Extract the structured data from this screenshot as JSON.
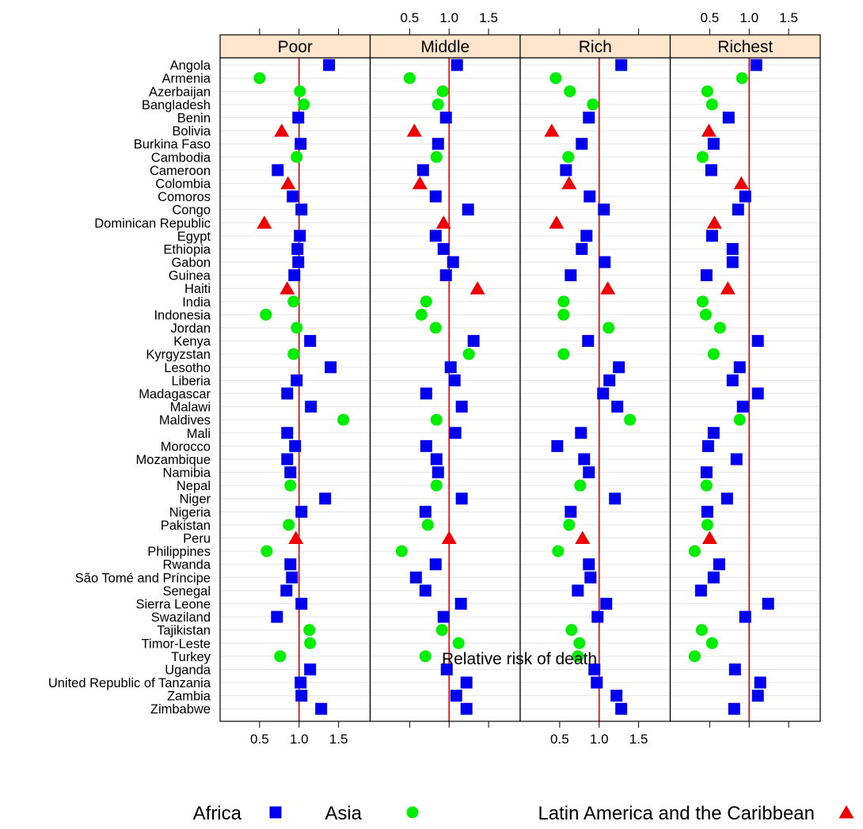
{
  "chart_data": {
    "type": "scatter",
    "title": "",
    "xlabel": "Relative risk of death",
    "ylabel": "",
    "xlim": [
      0.0,
      1.9
    ],
    "x_ticks": [
      0.5,
      1.0,
      1.5
    ],
    "x_tick_labels": [
      "0.5",
      "1.0",
      "1.5"
    ],
    "reference_line": 1.0,
    "grid": "horizontal",
    "legend_position": "bottom",
    "panels": [
      "Poor",
      "Middle",
      "Rich",
      "Richest"
    ],
    "series": [
      {
        "name": "Africa",
        "marker": "square",
        "color": "#0000ee"
      },
      {
        "name": "Asia",
        "marker": "circle",
        "color": "#00ee00"
      },
      {
        "name": "Latin America and the Caribbean",
        "marker": "triangle",
        "color": "#ee0000"
      }
    ],
    "countries": [
      {
        "name": "Angola",
        "region": "Africa",
        "values": [
          1.38,
          1.1,
          1.28,
          1.09
        ]
      },
      {
        "name": "Armenia",
        "region": "Asia",
        "values": [
          0.5,
          0.5,
          0.45,
          0.91
        ]
      },
      {
        "name": "Azerbaijan",
        "region": "Asia",
        "values": [
          1.01,
          0.92,
          0.63,
          0.47
        ]
      },
      {
        "name": "Bangladesh",
        "region": "Asia",
        "values": [
          1.06,
          0.86,
          0.92,
          0.53
        ]
      },
      {
        "name": "Benin",
        "region": "Africa",
        "values": [
          0.99,
          0.96,
          0.87,
          0.74
        ]
      },
      {
        "name": "Bolivia",
        "region": "Latin America and the Caribbean",
        "values": [
          0.78,
          0.56,
          0.4,
          0.49
        ]
      },
      {
        "name": "Burkina Faso",
        "region": "Africa",
        "values": [
          1.02,
          0.86,
          0.78,
          0.55
        ]
      },
      {
        "name": "Cambodia",
        "region": "Asia",
        "values": [
          0.97,
          0.84,
          0.61,
          0.41
        ]
      },
      {
        "name": "Cameroon",
        "region": "Africa",
        "values": [
          0.73,
          0.67,
          0.58,
          0.52
        ]
      },
      {
        "name": "Colombia",
        "region": "Latin America and the Caribbean",
        "values": [
          0.86,
          0.63,
          0.62,
          0.9
        ]
      },
      {
        "name": "Comoros",
        "region": "Africa",
        "values": [
          0.92,
          0.83,
          0.88,
          0.95
        ]
      },
      {
        "name": "Congo",
        "region": "Africa",
        "values": [
          1.03,
          1.24,
          1.06,
          0.86
        ]
      },
      {
        "name": "Dominican Republic",
        "region": "Latin America and the Caribbean",
        "values": [
          0.56,
          0.93,
          0.46,
          0.56
        ]
      },
      {
        "name": "Egypt",
        "region": "Africa",
        "values": [
          1.01,
          0.83,
          0.84,
          0.53
        ]
      },
      {
        "name": "Ethiopia",
        "region": "Africa",
        "values": [
          0.98,
          0.93,
          0.78,
          0.79
        ]
      },
      {
        "name": "Gabon",
        "region": "Africa",
        "values": [
          0.99,
          1.05,
          1.07,
          0.79
        ]
      },
      {
        "name": "Guinea",
        "region": "Africa",
        "values": [
          0.94,
          0.96,
          0.64,
          0.46
        ]
      },
      {
        "name": "Haiti",
        "region": "Latin America and the Caribbean",
        "values": [
          0.85,
          1.36,
          1.11,
          0.73
        ]
      },
      {
        "name": "India",
        "region": "Asia",
        "values": [
          0.93,
          0.71,
          0.55,
          0.41
        ]
      },
      {
        "name": "Indonesia",
        "region": "Asia",
        "values": [
          0.58,
          0.65,
          0.55,
          0.45
        ]
      },
      {
        "name": "Jordan",
        "region": "Asia",
        "values": [
          0.97,
          0.83,
          1.12,
          0.63
        ]
      },
      {
        "name": "Kenya",
        "region": "Africa",
        "values": [
          1.14,
          1.31,
          0.86,
          1.11
        ]
      },
      {
        "name": "Kyrgyzstan",
        "region": "Asia",
        "values": [
          0.93,
          1.25,
          0.55,
          0.55
        ]
      },
      {
        "name": "Lesotho",
        "region": "Africa",
        "values": [
          1.4,
          1.02,
          1.25,
          0.88
        ]
      },
      {
        "name": "Liberia",
        "region": "Africa",
        "values": [
          0.97,
          1.07,
          1.13,
          0.79
        ]
      },
      {
        "name": "Madagascar",
        "region": "Africa",
        "values": [
          0.85,
          0.71,
          1.05,
          1.11
        ]
      },
      {
        "name": "Malawi",
        "region": "Africa",
        "values": [
          1.15,
          1.16,
          1.23,
          0.92
        ]
      },
      {
        "name": "Maldives",
        "region": "Asia",
        "values": [
          1.56,
          0.84,
          1.39,
          0.88
        ]
      },
      {
        "name": "Mali",
        "region": "Africa",
        "values": [
          0.85,
          1.08,
          0.77,
          0.55
        ]
      },
      {
        "name": "Morocco",
        "region": "Africa",
        "values": [
          0.95,
          0.71,
          0.47,
          0.48
        ]
      },
      {
        "name": "Mozambique",
        "region": "Africa",
        "values": [
          0.85,
          0.84,
          0.81,
          0.84
        ]
      },
      {
        "name": "Namibia",
        "region": "Africa",
        "values": [
          0.89,
          0.86,
          0.87,
          0.46
        ]
      },
      {
        "name": "Nepal",
        "region": "Asia",
        "values": [
          0.89,
          0.84,
          0.76,
          0.46
        ]
      },
      {
        "name": "Niger",
        "region": "Africa",
        "values": [
          1.33,
          1.16,
          1.2,
          0.72
        ]
      },
      {
        "name": "Nigeria",
        "region": "Africa",
        "values": [
          1.03,
          0.7,
          0.64,
          0.47
        ]
      },
      {
        "name": "Pakistan",
        "region": "Asia",
        "values": [
          0.87,
          0.73,
          0.62,
          0.47
        ]
      },
      {
        "name": "Peru",
        "region": "Latin America and the Caribbean",
        "values": [
          0.96,
          1.0,
          0.79,
          0.5
        ]
      },
      {
        "name": "Philippines",
        "region": "Asia",
        "values": [
          0.59,
          0.4,
          0.48,
          0.31
        ]
      },
      {
        "name": "Rwanda",
        "region": "Africa",
        "values": [
          0.89,
          0.83,
          0.87,
          0.62
        ]
      },
      {
        "name": "São Tomé and Príncipe",
        "region": "Africa",
        "values": [
          0.91,
          0.58,
          0.89,
          0.55
        ]
      },
      {
        "name": "Senegal",
        "region": "Africa",
        "values": [
          0.84,
          0.7,
          0.73,
          0.39
        ]
      },
      {
        "name": "Sierra Leone",
        "region": "Africa",
        "values": [
          1.03,
          1.15,
          1.09,
          1.24
        ]
      },
      {
        "name": "Swaziland",
        "region": "Africa",
        "values": [
          0.72,
          0.93,
          0.98,
          0.95
        ]
      },
      {
        "name": "Tajikistan",
        "region": "Asia",
        "values": [
          1.13,
          0.91,
          0.65,
          0.4
        ]
      },
      {
        "name": "Timor-Leste",
        "region": "Asia",
        "values": [
          1.14,
          1.12,
          0.75,
          0.53
        ]
      },
      {
        "name": "Turkey",
        "region": "Asia",
        "values": [
          0.76,
          0.7,
          0.73,
          0.31
        ]
      },
      {
        "name": "Uganda",
        "region": "Africa",
        "values": [
          1.14,
          0.97,
          0.94,
          0.82
        ]
      },
      {
        "name": "United Republic of Tanzania",
        "region": "Africa",
        "values": [
          1.02,
          1.22,
          0.97,
          1.14
        ]
      },
      {
        "name": "Zambia",
        "region": "Africa",
        "values": [
          1.03,
          1.09,
          1.22,
          1.11
        ]
      },
      {
        "name": "Zimbabwe",
        "region": "Africa",
        "values": [
          1.28,
          1.22,
          1.28,
          0.81
        ]
      }
    ]
  }
}
